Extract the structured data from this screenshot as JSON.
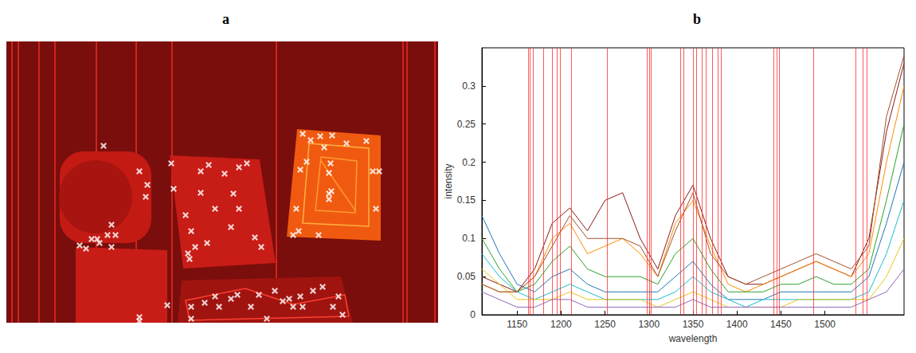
{
  "chart_data": [
    {
      "type": "scatter",
      "title": "a",
      "marker": "x",
      "color": "#ffffff",
      "tick_labels": false,
      "grid": false,
      "xlim": [
        0,
        542
      ],
      "ylim": [
        0,
        353
      ],
      "x": [
        122,
        167,
        177,
        175,
        132,
        137,
        127,
        114,
        107,
        100,
        92,
        132,
        117,
        207,
        254,
        244,
        292,
        302,
        285,
        274,
        210,
        244,
        262,
        292,
        232,
        252,
        312,
        320,
        237,
        228,
        230,
        282,
        225,
        372,
        382,
        394,
        409,
        399,
        377,
        369,
        407,
        405,
        408,
        405,
        405,
        460,
        468,
        452,
        427,
        364,
        367,
        360,
        392,
        464,
        167,
        167,
        202,
        232,
        249,
        267,
        282,
        290,
        307,
        317,
        337,
        347,
        355,
        360,
        369,
        385,
        397,
        410,
        417,
        372,
        232,
        262,
        422,
        327
      ],
      "values": [
        131,
        163,
        180,
        195,
        230,
        243,
        243,
        248,
        248,
        260,
        256,
        258,
        253,
        153,
        155,
        163,
        158,
        153,
        191,
        166,
        185,
        190,
        210,
        210,
        238,
        253,
        246,
        258,
        258,
        266,
        273,
        233,
        218,
        116,
        124,
        119,
        118,
        133,
        151,
        161,
        153,
        165,
        188,
        191,
        198,
        163,
        163,
        125,
        128,
        210,
        238,
        243,
        243,
        210,
        346,
        351,
        331,
        333,
        328,
        333,
        323,
        318,
        333,
        318,
        313,
        326,
        323,
        333,
        320,
        313,
        308,
        333,
        320,
        333,
        348,
        320,
        343,
        348
      ]
    },
    {
      "type": "line",
      "title": "b",
      "x_label": "wavelength",
      "y_label": "intensity",
      "grid": false,
      "xlim": [
        1110,
        1590
      ],
      "ylim": [
        0,
        0.35
      ],
      "xticks": [
        1150,
        1200,
        1250,
        1300,
        1350,
        1400,
        1450,
        1500
      ],
      "yticks": [
        0,
        0.05,
        0.1,
        0.15,
        0.2,
        0.25,
        0.3
      ],
      "selected_wavelengths": [
        1163,
        1165,
        1168,
        1180,
        1190,
        1195,
        1199,
        1212,
        1252,
        1298,
        1300,
        1302,
        1336,
        1339,
        1350,
        1354,
        1360,
        1365,
        1372,
        1378,
        1382,
        1442,
        1445,
        1448,
        1487,
        1535,
        1543,
        1548
      ],
      "x": [
        1110,
        1130,
        1150,
        1170,
        1190,
        1210,
        1230,
        1250,
        1270,
        1290,
        1310,
        1330,
        1350,
        1370,
        1390,
        1410,
        1430,
        1450,
        1470,
        1490,
        1510,
        1530,
        1550,
        1570,
        1590
      ],
      "series": [
        {
          "color": "#8b1a1a",
          "values": [
            0.05,
            0.04,
            0.03,
            0.06,
            0.12,
            0.14,
            0.11,
            0.15,
            0.16,
            0.1,
            0.06,
            0.13,
            0.17,
            0.1,
            0.05,
            0.04,
            0.04,
            0.05,
            0.06,
            0.07,
            0.06,
            0.05,
            0.1,
            0.24,
            0.33
          ]
        },
        {
          "color": "#ff8c00",
          "values": [
            0.04,
            0.03,
            0.03,
            0.05,
            0.1,
            0.12,
            0.08,
            0.09,
            0.1,
            0.08,
            0.05,
            0.12,
            0.15,
            0.09,
            0.04,
            0.03,
            0.04,
            0.05,
            0.06,
            0.07,
            0.06,
            0.05,
            0.08,
            0.2,
            0.3
          ]
        },
        {
          "color": "#2ca02c",
          "values": [
            0.1,
            0.06,
            0.03,
            0.04,
            0.07,
            0.09,
            0.06,
            0.05,
            0.05,
            0.05,
            0.04,
            0.08,
            0.1,
            0.06,
            0.03,
            0.03,
            0.03,
            0.04,
            0.04,
            0.05,
            0.04,
            0.04,
            0.06,
            0.15,
            0.25
          ]
        },
        {
          "color": "#1f77b4",
          "values": [
            0.13,
            0.08,
            0.04,
            0.03,
            0.05,
            0.06,
            0.04,
            0.03,
            0.03,
            0.03,
            0.03,
            0.05,
            0.07,
            0.04,
            0.02,
            0.02,
            0.02,
            0.03,
            0.03,
            0.03,
            0.03,
            0.03,
            0.05,
            0.12,
            0.2
          ]
        },
        {
          "color": "#17becf",
          "values": [
            0.08,
            0.05,
            0.03,
            0.02,
            0.03,
            0.04,
            0.03,
            0.02,
            0.02,
            0.02,
            0.02,
            0.03,
            0.05,
            0.03,
            0.02,
            0.01,
            0.02,
            0.02,
            0.02,
            0.02,
            0.02,
            0.02,
            0.03,
            0.08,
            0.15
          ]
        },
        {
          "color": "#e6c619",
          "values": [
            0.06,
            0.04,
            0.02,
            0.02,
            0.02,
            0.03,
            0.02,
            0.02,
            0.02,
            0.02,
            0.01,
            0.02,
            0.03,
            0.02,
            0.01,
            0.01,
            0.01,
            0.01,
            0.02,
            0.02,
            0.02,
            0.02,
            0.02,
            0.05,
            0.1
          ]
        },
        {
          "color": "#9467bd",
          "values": [
            0.03,
            0.02,
            0.01,
            0.01,
            0.02,
            0.02,
            0.01,
            0.01,
            0.01,
            0.01,
            0.01,
            0.01,
            0.02,
            0.01,
            0.01,
            0.01,
            0.01,
            0.01,
            0.01,
            0.01,
            0.01,
            0.01,
            0.02,
            0.03,
            0.06
          ]
        },
        {
          "color": "#a0522d",
          "values": [
            0.04,
            0.03,
            0.03,
            0.05,
            0.09,
            0.13,
            0.1,
            0.1,
            0.1,
            0.09,
            0.05,
            0.11,
            0.16,
            0.08,
            0.05,
            0.04,
            0.05,
            0.06,
            0.07,
            0.08,
            0.07,
            0.06,
            0.09,
            0.26,
            0.34
          ]
        }
      ]
    }
  ]
}
